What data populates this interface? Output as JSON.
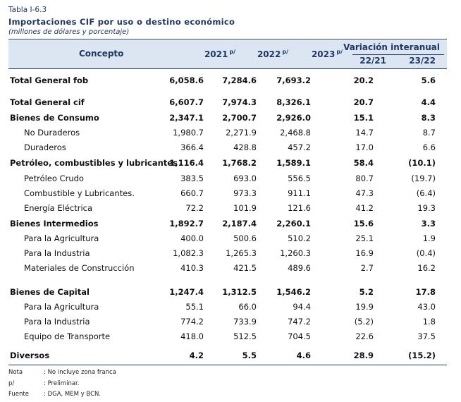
{
  "title": {
    "table_id": "Tabla I-6.3",
    "name": "Importaciones CIF por uso o destino económico",
    "units": "(millones de dólares y porcentaje)"
  },
  "headers": {
    "concept": "Concepto",
    "y2021": "2021",
    "y2021_mark": "p/",
    "y2022": "2022",
    "y2022_mark": "p/",
    "y2023": "2023",
    "y2023_mark": "p/",
    "variation": "Variación interanual",
    "v1": "22/21",
    "v2": "23/22"
  },
  "rows": [
    {
      "label": "Total General fob",
      "v2021": "6,058.6",
      "v2022": "7,284.6",
      "v2023": "7,693.2",
      "var1": "20.2",
      "var2": "5.6"
    },
    {
      "label": "Total General cif",
      "v2021": "6,607.7",
      "v2022": "7,974.3",
      "v2023": "8,326.1",
      "var1": "20.7",
      "var2": "4.4"
    },
    {
      "label": "Bienes de Consumo",
      "v2021": "2,347.1",
      "v2022": "2,700.7",
      "v2023": "2,926.0",
      "var1": "15.1",
      "var2": "8.3"
    },
    {
      "label": "No Duraderos",
      "v2021": "1,980.7",
      "v2022": "2,271.9",
      "v2023": "2,468.8",
      "var1": "14.7",
      "var2": "8.7"
    },
    {
      "label": "Duraderos",
      "v2021": "366.4",
      "v2022": "428.8",
      "v2023": "457.2",
      "var1": "17.0",
      "var2": "6.6"
    },
    {
      "label": "Petróleo, combustibles y lubricantes",
      "v2021": "1,116.4",
      "v2022": "1,768.2",
      "v2023": "1,589.1",
      "var1": "58.4",
      "var2": "(10.1)"
    },
    {
      "label": "Petróleo Crudo",
      "v2021": "383.5",
      "v2022": "693.0",
      "v2023": "556.5",
      "var1": "80.7",
      "var2": "(19.7)"
    },
    {
      "label": "Combustible  y Lubricantes.",
      "v2021": "660.7",
      "v2022": "973.3",
      "v2023": "911.1",
      "var1": "47.3",
      "var2": "(6.4)"
    },
    {
      "label": "Energía Eléctrica",
      "v2021": "72.2",
      "v2022": "101.9",
      "v2023": "121.6",
      "var1": "41.2",
      "var2": "19.3"
    },
    {
      "label": "Bienes Intermedios",
      "v2021": "1,892.7",
      "v2022": "2,187.4",
      "v2023": "2,260.1",
      "var1": "15.6",
      "var2": "3.3"
    },
    {
      "label": "Para la Agricultura",
      "v2021": "400.0",
      "v2022": "500.6",
      "v2023": "510.2",
      "var1": "25.1",
      "var2": "1.9"
    },
    {
      "label": "Para la Industria",
      "v2021": "1,082.3",
      "v2022": "1,265.3",
      "v2023": "1,260.3",
      "var1": "16.9",
      "var2": "(0.4)"
    },
    {
      "label": "Materiales de Construcción",
      "v2021": "410.3",
      "v2022": "421.5",
      "v2023": "489.6",
      "var1": "2.7",
      "var2": "16.2"
    },
    {
      "label": "Bienes de Capital",
      "v2021": "1,247.4",
      "v2022": "1,312.5",
      "v2023": "1,546.2",
      "var1": "5.2",
      "var2": "17.8"
    },
    {
      "label": "Para la Agricultura",
      "v2021": "55.1",
      "v2022": "66.0",
      "v2023": "94.4",
      "var1": "19.9",
      "var2": "43.0"
    },
    {
      "label": "Para la Industria",
      "v2021": "774.2",
      "v2022": "733.9",
      "v2023": "747.2",
      "var1": "(5.2)",
      "var2": "1.8"
    },
    {
      "label": "Equipo de Transporte",
      "v2021": "418.0",
      "v2022": "512.5",
      "v2023": "704.5",
      "var1": "22.6",
      "var2": "37.5"
    },
    {
      "label": "Diversos",
      "v2021": "4.2",
      "v2022": "5.5",
      "v2023": "4.6",
      "var1": "28.9",
      "var2": "(15.2)"
    }
  ],
  "footnotes": [
    {
      "key": "Nota",
      "text": ": No incluye zona franca"
    },
    {
      "key": "p/",
      "text": ": Preliminar."
    },
    {
      "key": "Fuente",
      "text": ": DGA, MEM y BCN."
    }
  ]
}
